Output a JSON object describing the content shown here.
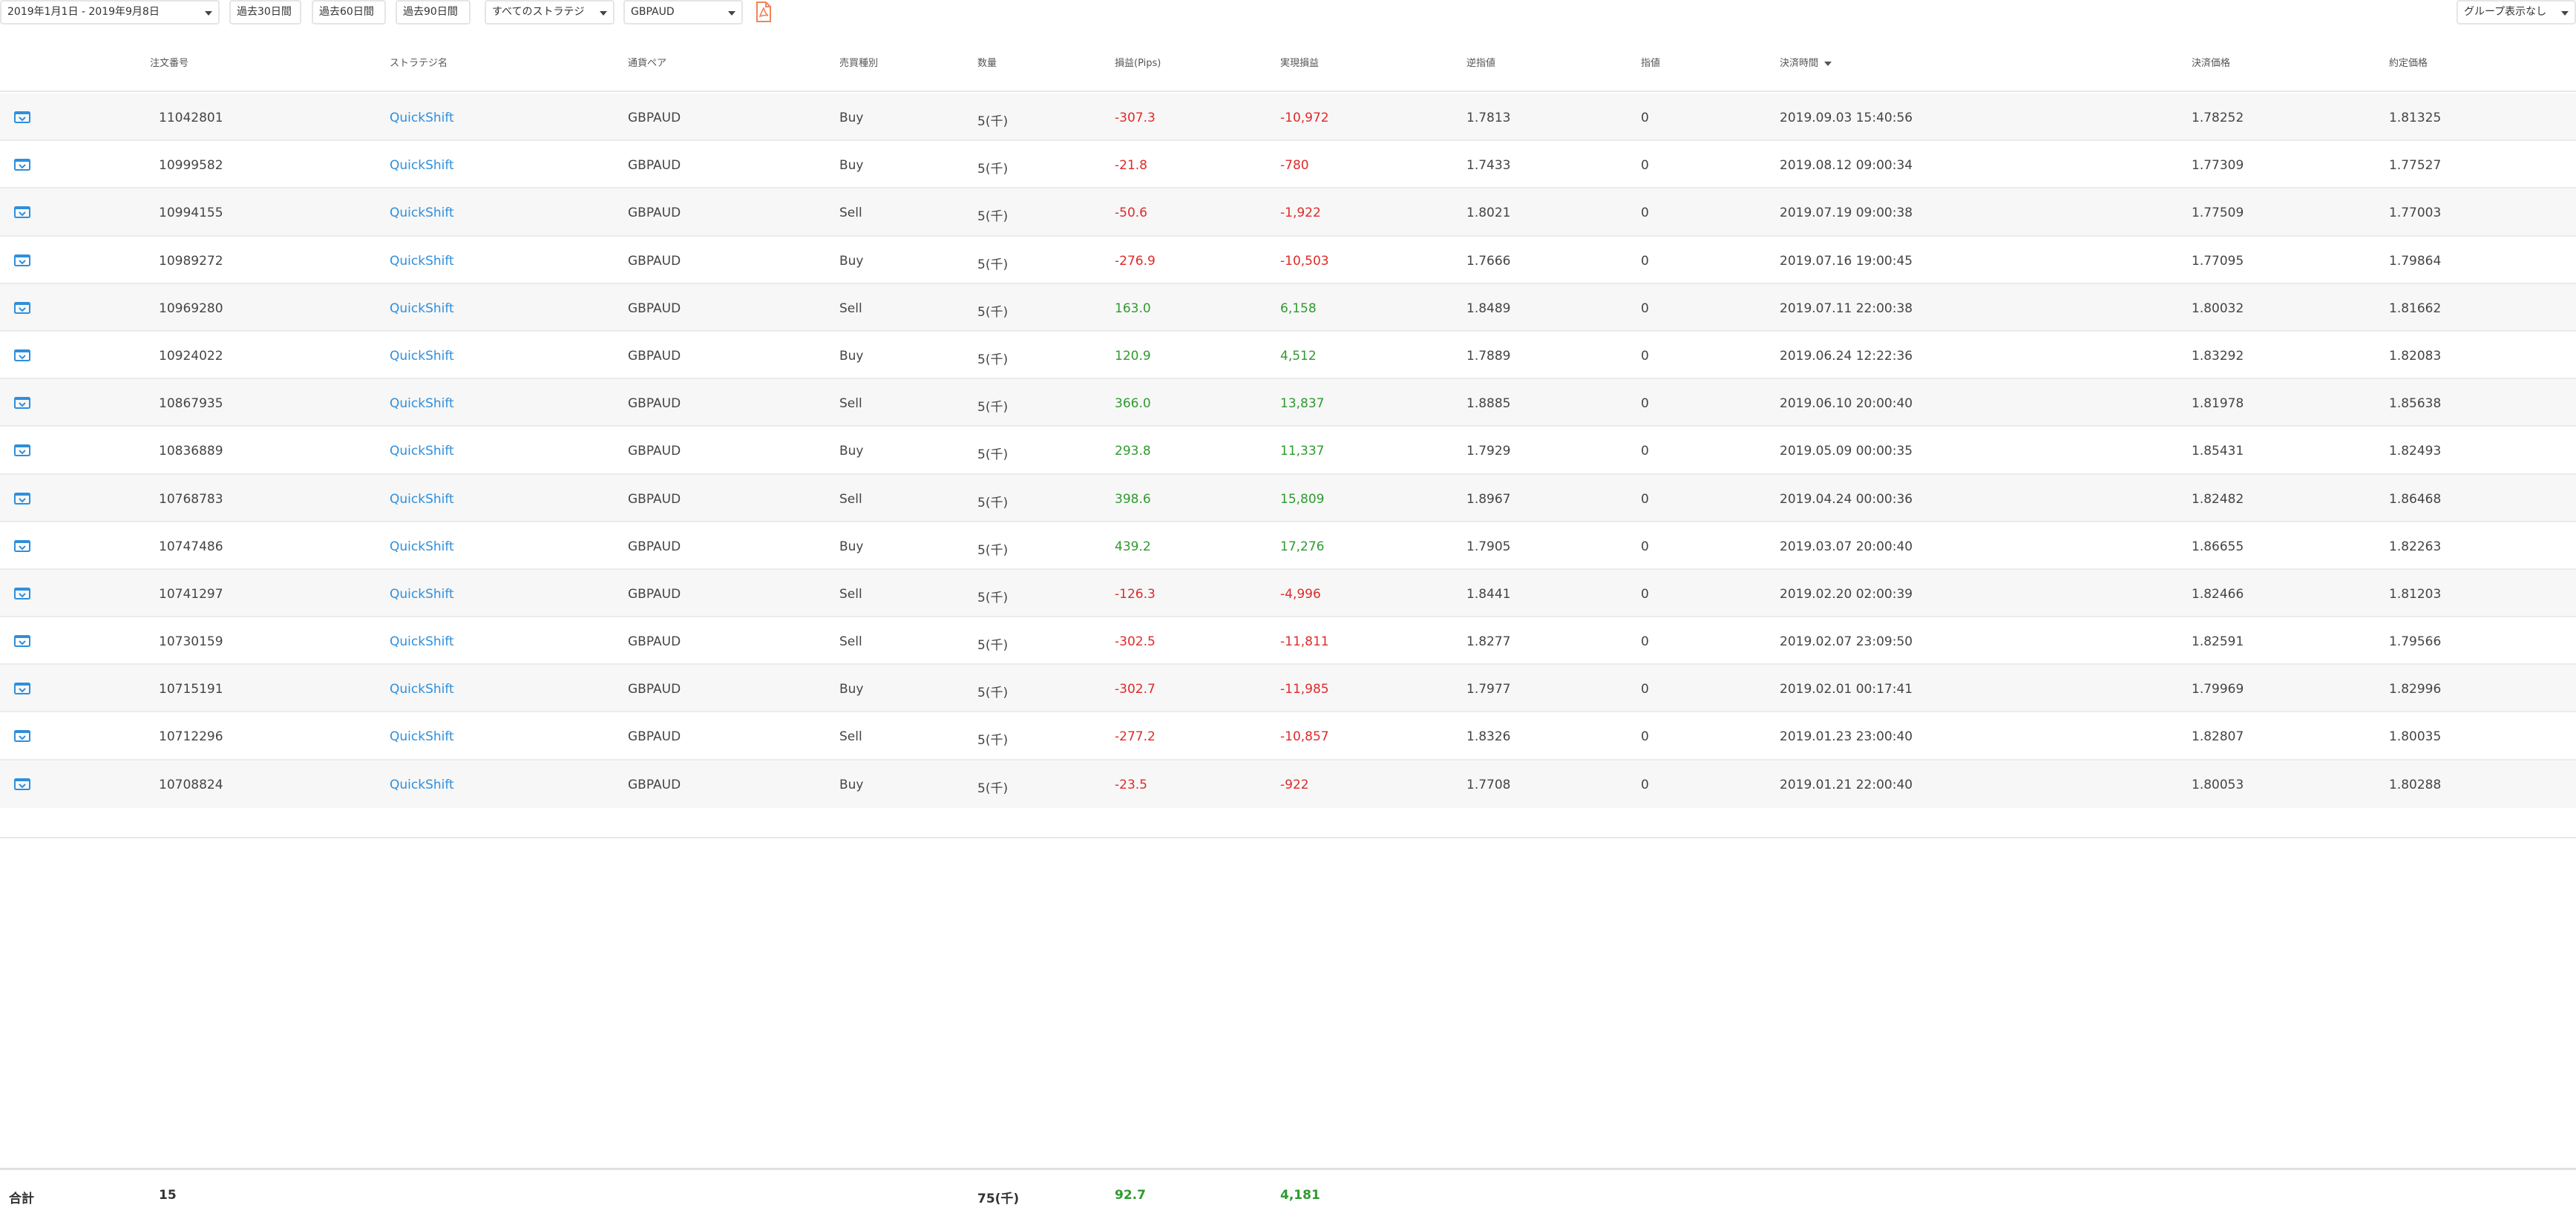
{
  "toolbar": {
    "date_range": "2019年1月1日 - 2019年9月8日",
    "btn_30": "過去30日間",
    "btn_60": "過去60日間",
    "btn_90": "過去90日間",
    "strategy_select": "すべてのストラテジ",
    "pair_select": "GBPAUD",
    "pdf_icon": "pdf-file-icon",
    "group_select": "グループ表示なし"
  },
  "columns": {
    "order_no": "注文番号",
    "strategy": "ストラテジ名",
    "pair": "通貨ペア",
    "side": "売買種別",
    "qty": "数量",
    "pips": "損益(Pips)",
    "pnl": "実現損益",
    "stop": "逆指値",
    "limit": "指値",
    "close_time": "決済時間",
    "close_price": "決済価格",
    "open_price": "約定価格"
  },
  "colors": {
    "link": "#2e8fdd",
    "negative": "#e02a2a",
    "positive": "#2f9a2f",
    "pdf": "#f0845a"
  },
  "rows": [
    {
      "icon": "trade-detail-icon",
      "order_no": "11042801",
      "strategy": "QuickShift",
      "pair": "GBPAUD",
      "side": "Buy",
      "qty": "5(千)",
      "pips": "-307.3",
      "pnl": "-10,972",
      "stop": "1.7813",
      "limit": "0",
      "close_time": "2019.09.03 15:40:56",
      "close_price": "1.78252",
      "open_price": "1.81325"
    },
    {
      "icon": "trade-detail-icon",
      "order_no": "10999582",
      "strategy": "QuickShift",
      "pair": "GBPAUD",
      "side": "Buy",
      "qty": "5(千)",
      "pips": "-21.8",
      "pnl": "-780",
      "stop": "1.7433",
      "limit": "0",
      "close_time": "2019.08.12 09:00:34",
      "close_price": "1.77309",
      "open_price": "1.77527"
    },
    {
      "icon": "trade-detail-icon",
      "order_no": "10994155",
      "strategy": "QuickShift",
      "pair": "GBPAUD",
      "side": "Sell",
      "qty": "5(千)",
      "pips": "-50.6",
      "pnl": "-1,922",
      "stop": "1.8021",
      "limit": "0",
      "close_time": "2019.07.19 09:00:38",
      "close_price": "1.77509",
      "open_price": "1.77003"
    },
    {
      "icon": "trade-detail-icon",
      "order_no": "10989272",
      "strategy": "QuickShift",
      "pair": "GBPAUD",
      "side": "Buy",
      "qty": "5(千)",
      "pips": "-276.9",
      "pnl": "-10,503",
      "stop": "1.7666",
      "limit": "0",
      "close_time": "2019.07.16 19:00:45",
      "close_price": "1.77095",
      "open_price": "1.79864"
    },
    {
      "icon": "trade-detail-icon",
      "order_no": "10969280",
      "strategy": "QuickShift",
      "pair": "GBPAUD",
      "side": "Sell",
      "qty": "5(千)",
      "pips": "163.0",
      "pnl": "6,158",
      "stop": "1.8489",
      "limit": "0",
      "close_time": "2019.07.11 22:00:38",
      "close_price": "1.80032",
      "open_price": "1.81662"
    },
    {
      "icon": "trade-detail-icon",
      "order_no": "10924022",
      "strategy": "QuickShift",
      "pair": "GBPAUD",
      "side": "Buy",
      "qty": "5(千)",
      "pips": "120.9",
      "pnl": "4,512",
      "stop": "1.7889",
      "limit": "0",
      "close_time": "2019.06.24 12:22:36",
      "close_price": "1.83292",
      "open_price": "1.82083"
    },
    {
      "icon": "trade-detail-icon",
      "order_no": "10867935",
      "strategy": "QuickShift",
      "pair": "GBPAUD",
      "side": "Sell",
      "qty": "5(千)",
      "pips": "366.0",
      "pnl": "13,837",
      "stop": "1.8885",
      "limit": "0",
      "close_time": "2019.06.10 20:00:40",
      "close_price": "1.81978",
      "open_price": "1.85638"
    },
    {
      "icon": "trade-detail-icon",
      "order_no": "10836889",
      "strategy": "QuickShift",
      "pair": "GBPAUD",
      "side": "Buy",
      "qty": "5(千)",
      "pips": "293.8",
      "pnl": "11,337",
      "stop": "1.7929",
      "limit": "0",
      "close_time": "2019.05.09 00:00:35",
      "close_price": "1.85431",
      "open_price": "1.82493"
    },
    {
      "icon": "trade-detail-icon",
      "order_no": "10768783",
      "strategy": "QuickShift",
      "pair": "GBPAUD",
      "side": "Sell",
      "qty": "5(千)",
      "pips": "398.6",
      "pnl": "15,809",
      "stop": "1.8967",
      "limit": "0",
      "close_time": "2019.04.24 00:00:36",
      "close_price": "1.82482",
      "open_price": "1.86468"
    },
    {
      "icon": "trade-detail-icon",
      "order_no": "10747486",
      "strategy": "QuickShift",
      "pair": "GBPAUD",
      "side": "Buy",
      "qty": "5(千)",
      "pips": "439.2",
      "pnl": "17,276",
      "stop": "1.7905",
      "limit": "0",
      "close_time": "2019.03.07 20:00:40",
      "close_price": "1.86655",
      "open_price": "1.82263"
    },
    {
      "icon": "trade-detail-icon",
      "order_no": "10741297",
      "strategy": "QuickShift",
      "pair": "GBPAUD",
      "side": "Sell",
      "qty": "5(千)",
      "pips": "-126.3",
      "pnl": "-4,996",
      "stop": "1.8441",
      "limit": "0",
      "close_time": "2019.02.20 02:00:39",
      "close_price": "1.82466",
      "open_price": "1.81203"
    },
    {
      "icon": "trade-detail-icon",
      "order_no": "10730159",
      "strategy": "QuickShift",
      "pair": "GBPAUD",
      "side": "Sell",
      "qty": "5(千)",
      "pips": "-302.5",
      "pnl": "-11,811",
      "stop": "1.8277",
      "limit": "0",
      "close_time": "2019.02.07 23:09:50",
      "close_price": "1.82591",
      "open_price": "1.79566"
    },
    {
      "icon": "trade-detail-icon",
      "order_no": "10715191",
      "strategy": "QuickShift",
      "pair": "GBPAUD",
      "side": "Buy",
      "qty": "5(千)",
      "pips": "-302.7",
      "pnl": "-11,985",
      "stop": "1.7977",
      "limit": "0",
      "close_time": "2019.02.01 00:17:41",
      "close_price": "1.79969",
      "open_price": "1.82996"
    },
    {
      "icon": "trade-detail-icon",
      "order_no": "10712296",
      "strategy": "QuickShift",
      "pair": "GBPAUD",
      "side": "Sell",
      "qty": "5(千)",
      "pips": "-277.2",
      "pnl": "-10,857",
      "stop": "1.8326",
      "limit": "0",
      "close_time": "2019.01.23 23:00:40",
      "close_price": "1.82807",
      "open_price": "1.80035"
    },
    {
      "icon": "trade-detail-icon",
      "order_no": "10708824",
      "strategy": "QuickShift",
      "pair": "GBPAUD",
      "side": "Buy",
      "qty": "5(千)",
      "pips": "-23.5",
      "pnl": "-922",
      "stop": "1.7708",
      "limit": "0",
      "close_time": "2019.01.21 22:00:40",
      "close_price": "1.80053",
      "open_price": "1.80288"
    }
  ],
  "footer": {
    "label": "合計",
    "count": "15",
    "qty": "75(千)",
    "pips": "92.7",
    "pnl": "4,181"
  }
}
